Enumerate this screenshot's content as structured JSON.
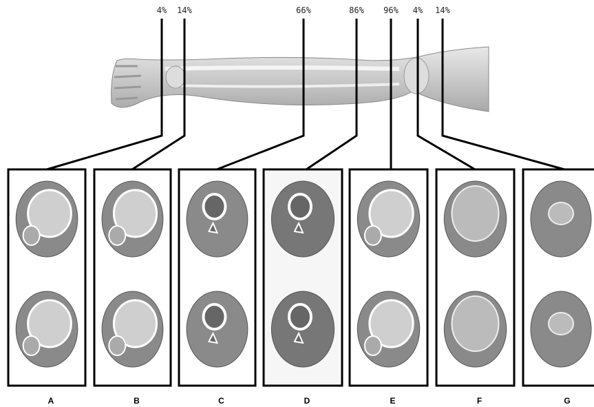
{
  "markers": [
    {
      "label": "4%"
    },
    {
      "label": "14%"
    },
    {
      "label": "66%"
    },
    {
      "label": "86%"
    },
    {
      "label": "96%"
    },
    {
      "label": "4%"
    },
    {
      "label": "14%"
    }
  ],
  "panels": [
    {
      "label": "A"
    },
    {
      "label": "B"
    },
    {
      "label": "C"
    },
    {
      "label": "D"
    },
    {
      "label": "E"
    },
    {
      "label": "F"
    },
    {
      "label": "G"
    }
  ]
}
